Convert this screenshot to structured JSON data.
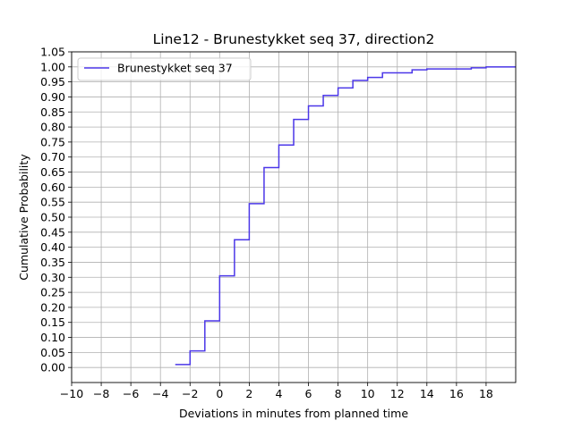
{
  "chart_data": {
    "type": "line",
    "step": true,
    "title": "Line12 - Brunestykket seq 37, direction2",
    "xlabel": "Deviations in minutes from planned time",
    "ylabel": "Cumulative Probability",
    "xlim": [
      -10,
      20
    ],
    "ylim": [
      -0.05,
      1.05
    ],
    "xticks": [
      -10,
      -8,
      -6,
      -4,
      -2,
      0,
      2,
      4,
      6,
      8,
      10,
      12,
      14,
      16,
      18
    ],
    "xtick_labels": [
      "−10",
      "−8",
      "−6",
      "−4",
      "−2",
      "0",
      "2",
      "4",
      "6",
      "8",
      "10",
      "12",
      "14",
      "16",
      "18"
    ],
    "yticks": [
      0.0,
      0.05,
      0.1,
      0.15,
      0.2,
      0.25,
      0.3,
      0.35,
      0.4,
      0.45,
      0.5,
      0.55,
      0.6,
      0.65,
      0.7,
      0.75,
      0.8,
      0.85,
      0.9,
      0.95,
      1.0,
      1.05
    ],
    "ytick_labels": [
      "0.00",
      "0.05",
      "0.10",
      "0.15",
      "0.20",
      "0.25",
      "0.30",
      "0.35",
      "0.40",
      "0.45",
      "0.50",
      "0.55",
      "0.60",
      "0.65",
      "0.70",
      "0.75",
      "0.80",
      "0.85",
      "0.90",
      "0.95",
      "1.00",
      "1.05"
    ],
    "grid": true,
    "legend_position": "top-left",
    "series": [
      {
        "name": "Brunestykket seq 37",
        "color": "#4b37e8",
        "x": [
          -3,
          -2,
          -1,
          0,
          1,
          2,
          3,
          4,
          5,
          6,
          7,
          8,
          9,
          10,
          11,
          13,
          14,
          17,
          18,
          20
        ],
        "y": [
          0.01,
          0.055,
          0.155,
          0.305,
          0.425,
          0.545,
          0.665,
          0.74,
          0.825,
          0.87,
          0.905,
          0.93,
          0.955,
          0.965,
          0.98,
          0.99,
          0.993,
          0.997,
          1.0,
          1.0
        ]
      }
    ]
  }
}
